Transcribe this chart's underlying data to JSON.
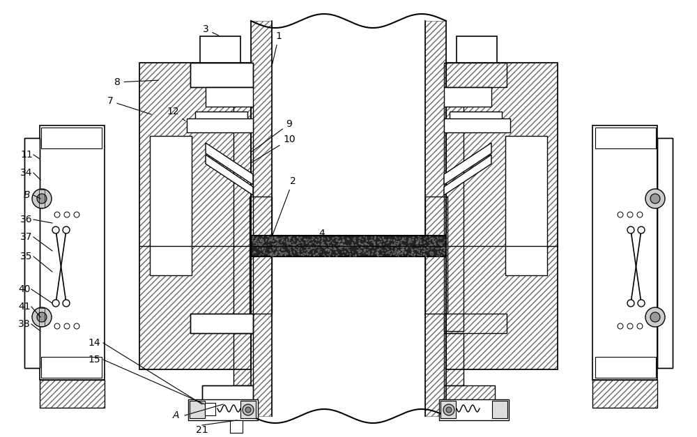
{
  "bg_color": "#ffffff",
  "line_color": "#000000",
  "lw": 1.0,
  "figsize": [
    10.0,
    6.27
  ],
  "dpi": 100,
  "font_sz": 10
}
